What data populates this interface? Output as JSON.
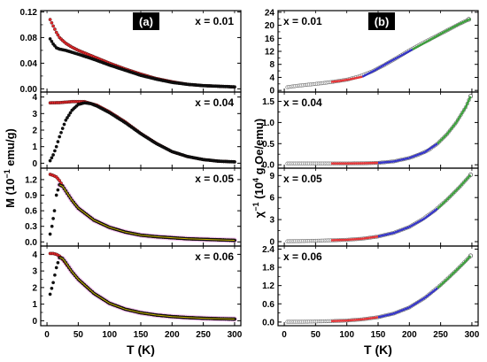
{
  "chart_data": [
    {
      "type": "scatter",
      "panel_label": "(a)",
      "ylabel_html": [
        "M (10",
        "−1",
        " emu/g)"
      ],
      "xlabel": "T (K)",
      "xlim": [
        -10,
        310
      ],
      "xticks": [
        0,
        50,
        100,
        150,
        200,
        250,
        300
      ],
      "grid": false,
      "subplots": [
        {
          "annotation": "x = 0.01",
          "ylim": [
            -0.005,
            0.122
          ],
          "yticks": [
            0.0,
            0.04,
            0.08,
            0.12
          ],
          "ytick_labels": [
            "0.00",
            "0.04",
            "0.08",
            "0.12"
          ],
          "series": [
            {
              "color": "#e8272a",
              "x": [
                5,
                10,
                15,
                20,
                30,
                40,
                50,
                75,
                100,
                125,
                150,
                175,
                200,
                225,
                250,
                275,
                300
              ],
              "y": [
                0.108,
                0.098,
                0.088,
                0.08,
                0.071,
                0.065,
                0.06,
                0.05,
                0.04,
                0.031,
                0.023,
                0.016,
                0.011,
                0.007,
                0.005,
                0.004,
                0.003
              ]
            },
            {
              "color": "#111111",
              "x": [
                5,
                10,
                15,
                20,
                30,
                40,
                50,
                75,
                100,
                125,
                150,
                175,
                200,
                225,
                250,
                275,
                300
              ],
              "y": [
                0.078,
                0.07,
                0.064,
                0.062,
                0.06,
                0.057,
                0.054,
                0.046,
                0.037,
                0.029,
                0.021,
                0.015,
                0.01,
                0.007,
                0.005,
                0.004,
                0.003
              ]
            }
          ]
        },
        {
          "annotation": "x = 0.04",
          "ylim": [
            -0.3,
            4.3
          ],
          "yticks": [
            0,
            1,
            2,
            3,
            4
          ],
          "ytick_labels": [
            "0",
            "1",
            "2",
            "3",
            "4"
          ],
          "series": [
            {
              "color": "#e8272a",
              "x": [
                5,
                20,
                40,
                60,
                80,
                100,
                125,
                150,
                175,
                200,
                225,
                250,
                275,
                300
              ],
              "y": [
                3.65,
                3.66,
                3.72,
                3.72,
                3.5,
                3.1,
                2.5,
                1.8,
                1.2,
                0.7,
                0.4,
                0.22,
                0.12,
                0.08
              ]
            },
            {
              "color": "#111111",
              "x": [
                5,
                10,
                15,
                20,
                30,
                40,
                50,
                60,
                70,
                80,
                100,
                125,
                150,
                175,
                200,
                225,
                250,
                275,
                300
              ],
              "y": [
                0.15,
                0.5,
                1.0,
                1.6,
                2.6,
                3.2,
                3.55,
                3.65,
                3.6,
                3.45,
                3.05,
                2.45,
                1.78,
                1.18,
                0.7,
                0.4,
                0.22,
                0.12,
                0.08
              ]
            }
          ]
        },
        {
          "annotation": "x = 0.05",
          "ylim": [
            -0.08,
            1.42
          ],
          "yticks": [
            0.0,
            0.3,
            0.6,
            0.9,
            1.2
          ],
          "ytick_labels": [
            "0.0",
            "0.3",
            "0.6",
            "0.9",
            "1.2"
          ],
          "series": [
            {
              "color": "#e8272a",
              "x": [
                5,
                10,
                15,
                20,
                25,
                30,
                40,
                50,
                75,
                100,
                125,
                150,
                175,
                200,
                225,
                250,
                275,
                300
              ],
              "y": [
                1.3,
                1.28,
                1.25,
                1.18,
                1.08,
                0.98,
                0.8,
                0.65,
                0.42,
                0.28,
                0.19,
                0.13,
                0.1,
                0.08,
                0.06,
                0.05,
                0.04,
                0.03
              ]
            },
            {
              "color": "#111111",
              "x": [
                5,
                8,
                12,
                15,
                20,
                25,
                30,
                40,
                50,
                75,
                100,
                125,
                150,
                175,
                200,
                225,
                250,
                275,
                300
              ],
              "y": [
                0.15,
                0.3,
                0.6,
                0.9,
                1.1,
                1.07,
                0.98,
                0.8,
                0.65,
                0.42,
                0.28,
                0.19,
                0.13,
                0.1,
                0.08,
                0.06,
                0.05,
                0.04,
                0.03
              ]
            }
          ]
        },
        {
          "annotation": "x = 0.06",
          "ylim": [
            -0.3,
            4.5
          ],
          "yticks": [
            0,
            1,
            2,
            3,
            4
          ],
          "ytick_labels": [
            "0",
            "1",
            "2",
            "3",
            "4"
          ],
          "series": [
            {
              "color": "#e8272a",
              "x": [
                5,
                10,
                15,
                20,
                25,
                30,
                40,
                50,
                75,
                100,
                125,
                150,
                175,
                200,
                225,
                250,
                275,
                300
              ],
              "y": [
                4.05,
                4.05,
                4.0,
                3.9,
                3.7,
                3.45,
                2.95,
                2.5,
                1.65,
                1.05,
                0.7,
                0.48,
                0.34,
                0.25,
                0.19,
                0.15,
                0.12,
                0.1
              ]
            },
            {
              "color": "#111111",
              "x": [
                5,
                10,
                15,
                20,
                25,
                30,
                40,
                50,
                75,
                100,
                125,
                150,
                175,
                200,
                225,
                250,
                275,
                300
              ],
              "y": [
                1.6,
                2.3,
                3.2,
                3.8,
                3.75,
                3.5,
                2.95,
                2.5,
                1.65,
                1.05,
                0.7,
                0.48,
                0.34,
                0.25,
                0.19,
                0.15,
                0.12,
                0.1
              ]
            }
          ]
        }
      ]
    },
    {
      "type": "scatter",
      "panel_label": "(b)",
      "ylabel_html": [
        "χ",
        "−1",
        " (10",
        "4",
        " g.Oe/emu)"
      ],
      "xlabel": "T (K)",
      "xlim": [
        -10,
        310
      ],
      "xticks": [
        0,
        50,
        100,
        150,
        200,
        250,
        300
      ],
      "grid": false,
      "subplots": [
        {
          "annotation": "x = 0.01",
          "ylim": [
            -0.5,
            24.5
          ],
          "yticks": [
            0,
            4,
            8,
            12,
            16,
            20,
            24
          ],
          "ytick_labels": [
            "0",
            "4",
            "8",
            "12",
            "16",
            "20",
            "24"
          ],
          "points": {
            "x": [
              5,
              20,
              40,
              60,
              80,
              100,
              120,
              140,
              160,
              180,
              200,
              220,
              240,
              260,
              280,
              295
            ],
            "y": [
              1.0,
              1.4,
              1.8,
              2.2,
              2.7,
              3.3,
              4.3,
              5.8,
              7.8,
              10.0,
              12.3,
              14.4,
              16.4,
              18.4,
              20.4,
              21.8
            ]
          },
          "fits": [
            {
              "color": "#e8272a",
              "x": [
                75,
                90,
                105,
                125
              ],
              "y": [
                2.6,
                2.95,
                3.4,
                4.2
              ]
            },
            {
              "color": "#2626c8",
              "x": [
                125,
                145,
                165,
                185,
                205
              ],
              "y": [
                4.2,
                6.2,
                8.4,
                10.5,
                12.6
              ]
            },
            {
              "color": "#2e9a2e",
              "x": [
                205,
                230,
                255,
                280,
                298
              ],
              "y": [
                12.6,
                15.2,
                17.9,
                20.4,
                22.0
              ]
            }
          ]
        },
        {
          "annotation": "x = 0.04",
          "ylim": [
            -0.08,
            1.72
          ],
          "yticks": [
            0.0,
            0.5,
            1.0,
            1.5
          ],
          "ytick_labels": [
            "0.0",
            "0.5",
            "1.0",
            "1.5"
          ],
          "points": {
            "x": [
              5,
              25,
              50,
              75,
              100,
              125,
              150,
              175,
              200,
              215,
              230,
              245,
              260,
              275,
              290,
              298
            ],
            "y": [
              0.03,
              0.03,
              0.03,
              0.03,
              0.03,
              0.035,
              0.045,
              0.08,
              0.16,
              0.24,
              0.34,
              0.5,
              0.72,
              1.0,
              1.36,
              1.62
            ]
          },
          "fits": [
            {
              "color": "#e8272a",
              "x": [
                75,
                100,
                125,
                150
              ],
              "y": [
                0.03,
                0.03,
                0.035,
                0.045
              ]
            },
            {
              "color": "#2626c8",
              "x": [
                150,
                175,
                200,
                225,
                245
              ],
              "y": [
                0.045,
                0.08,
                0.16,
                0.3,
                0.5
              ]
            },
            {
              "color": "#2e9a2e",
              "x": [
                245,
                260,
                275,
                290,
                298
              ],
              "y": [
                0.5,
                0.72,
                1.0,
                1.36,
                1.62
              ]
            }
          ]
        },
        {
          "annotation": "x = 0.05",
          "ylim": [
            -0.6,
            10.0
          ],
          "yticks": [
            0,
            3,
            6,
            9
          ],
          "ytick_labels": [
            "0",
            "3",
            "6",
            "9"
          ],
          "points": {
            "x": [
              5,
              25,
              50,
              75,
              100,
              125,
              150,
              175,
              200,
              220,
              240,
              260,
              280,
              298
            ],
            "y": [
              0.05,
              0.08,
              0.12,
              0.18,
              0.25,
              0.4,
              0.7,
              1.2,
              2.0,
              3.0,
              4.2,
              5.7,
              7.4,
              9.1
            ]
          },
          "fits": [
            {
              "color": "#e8272a",
              "x": [
                75,
                100,
                125,
                150
              ],
              "y": [
                0.18,
                0.25,
                0.4,
                0.7
              ]
            },
            {
              "color": "#2626c8",
              "x": [
                150,
                175,
                200,
                225,
                245
              ],
              "y": [
                0.7,
                1.2,
                2.0,
                3.2,
                4.5
              ]
            },
            {
              "color": "#2e9a2e",
              "x": [
                245,
                260,
                280,
                298
              ],
              "y": [
                4.5,
                5.7,
                7.4,
                9.1
              ]
            }
          ]
        },
        {
          "annotation": "x = 0.06",
          "ylim": [
            -0.12,
            2.5
          ],
          "yticks": [
            0.0,
            0.6,
            1.2,
            1.8,
            2.4
          ],
          "ytick_labels": [
            "0.0",
            "0.6",
            "1.2",
            "1.8",
            "2.4"
          ],
          "points": {
            "x": [
              5,
              25,
              50,
              75,
              100,
              125,
              150,
              175,
              200,
              225,
              250,
              275,
              298
            ],
            "y": [
              0.01,
              0.01,
              0.02,
              0.03,
              0.05,
              0.09,
              0.16,
              0.28,
              0.48,
              0.8,
              1.22,
              1.7,
              2.18
            ]
          },
          "fits": [
            {
              "color": "#e8272a",
              "x": [
                75,
                100,
                125,
                150
              ],
              "y": [
                0.03,
                0.05,
                0.09,
                0.16
              ]
            },
            {
              "color": "#2626c8",
              "x": [
                150,
                175,
                200,
                225,
                245
              ],
              "y": [
                0.16,
                0.28,
                0.48,
                0.8,
                1.12
              ]
            },
            {
              "color": "#2e9a2e",
              "x": [
                245,
                260,
                275,
                290,
                298
              ],
              "y": [
                1.12,
                1.4,
                1.7,
                2.0,
                2.18
              ]
            }
          ]
        }
      ]
    }
  ]
}
